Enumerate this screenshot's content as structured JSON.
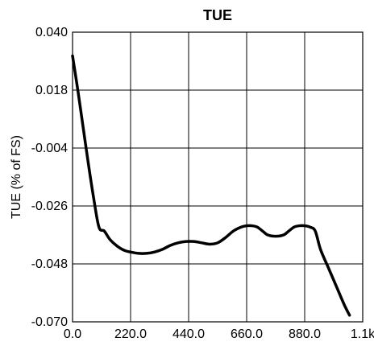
{
  "chart_data": {
    "type": "line",
    "title": "TUE",
    "xlabel": "",
    "ylabel": "TUE (% of FS)",
    "xlim": [
      0,
      1100
    ],
    "ylim": [
      -0.07,
      0.04
    ],
    "x_ticks": [
      0,
      220,
      440,
      660,
      880,
      1100
    ],
    "x_tick_labels": [
      "0.0",
      "220.0",
      "440.0",
      "660.0",
      "880.0",
      "1.1k"
    ],
    "y_ticks": [
      -0.07,
      -0.048,
      -0.026,
      -0.004,
      0.018,
      0.04
    ],
    "y_tick_labels": [
      "-0.070",
      "-0.048",
      "-0.026",
      "-0.004",
      "0.018",
      "0.040"
    ],
    "grid": true,
    "series": [
      {
        "color": "#000000",
        "x": [
          0,
          20,
          40,
          60,
          80,
          100,
          120,
          140,
          160,
          180,
          200,
          220,
          250,
          280,
          310,
          340,
          370,
          400,
          430,
          460,
          490,
          520,
          550,
          580,
          610,
          640,
          660,
          680,
          700,
          720,
          740,
          770,
          800,
          820,
          840,
          860,
          880,
          900,
          920,
          940,
          970,
          1000,
          1030,
          1050
        ],
        "y": [
          0.031,
          0.018,
          0.004,
          -0.01,
          -0.023,
          -0.034,
          -0.0355,
          -0.0385,
          -0.0405,
          -0.042,
          -0.043,
          -0.0435,
          -0.044,
          -0.044,
          -0.0435,
          -0.0425,
          -0.041,
          -0.04,
          -0.0395,
          -0.0395,
          -0.04,
          -0.0405,
          -0.04,
          -0.038,
          -0.0355,
          -0.034,
          -0.0335,
          -0.0335,
          -0.034,
          -0.0355,
          -0.037,
          -0.0375,
          -0.037,
          -0.0355,
          -0.034,
          -0.0335,
          -0.0335,
          -0.034,
          -0.0355,
          -0.0425,
          -0.0495,
          -0.0565,
          -0.0635,
          -0.0675
        ]
      }
    ]
  }
}
